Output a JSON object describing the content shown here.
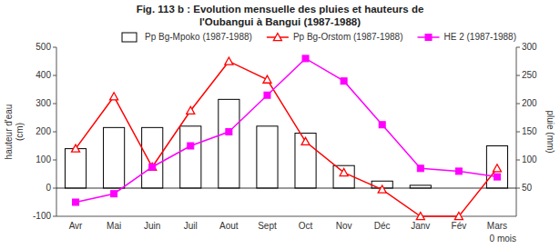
{
  "chart_data": {
    "type": "bar",
    "title": "Fig. 113 b : Evolution mensuelle des pluies et hauteurs de\nl'Oubangui à Bangui (1987-1988)",
    "categories": [
      "Avr",
      "Mai",
      "Juin",
      "Juil",
      "Aout",
      "Sept",
      "Oct",
      "Nov",
      "Déc",
      "Janv",
      "Fév",
      "Mars"
    ],
    "series": [
      {
        "name": "Pp Bg-Mpoko (1987-1988)",
        "type": "bar",
        "color": "white",
        "values": [
          140,
          215,
          215,
          220,
          315,
          220,
          195,
          80,
          25,
          10,
          0,
          150
        ]
      },
      {
        "name": "Pp Bg-Orstom (1987-1988)",
        "type": "line",
        "color": "red",
        "marker": "triangle",
        "values": [
          140,
          325,
          75,
          275,
          450,
          385,
          165,
          55,
          -5,
          -100,
          -100,
          70
        ]
      },
      {
        "name": "HE 2 (1987-1988)",
        "type": "line",
        "color": "magenta",
        "marker": "square",
        "values": [
          -50,
          -20,
          75,
          150,
          200,
          330,
          460,
          380,
          225,
          70,
          60,
          40
        ]
      }
    ],
    "ylabel": "hauteur d'eau\n(cm)",
    "y2label": "pluie (mm)",
    "annotations": [
      "0 mois"
    ],
    "ylim": [
      -100,
      500
    ],
    "yticks": [
      -100,
      0,
      100,
      200,
      300,
      400,
      500
    ],
    "y2lim": [
      0,
      300
    ],
    "y2ticks": [
      50,
      100,
      150,
      200,
      250,
      300
    ],
    "legend": "upper right",
    "grid": false
  }
}
